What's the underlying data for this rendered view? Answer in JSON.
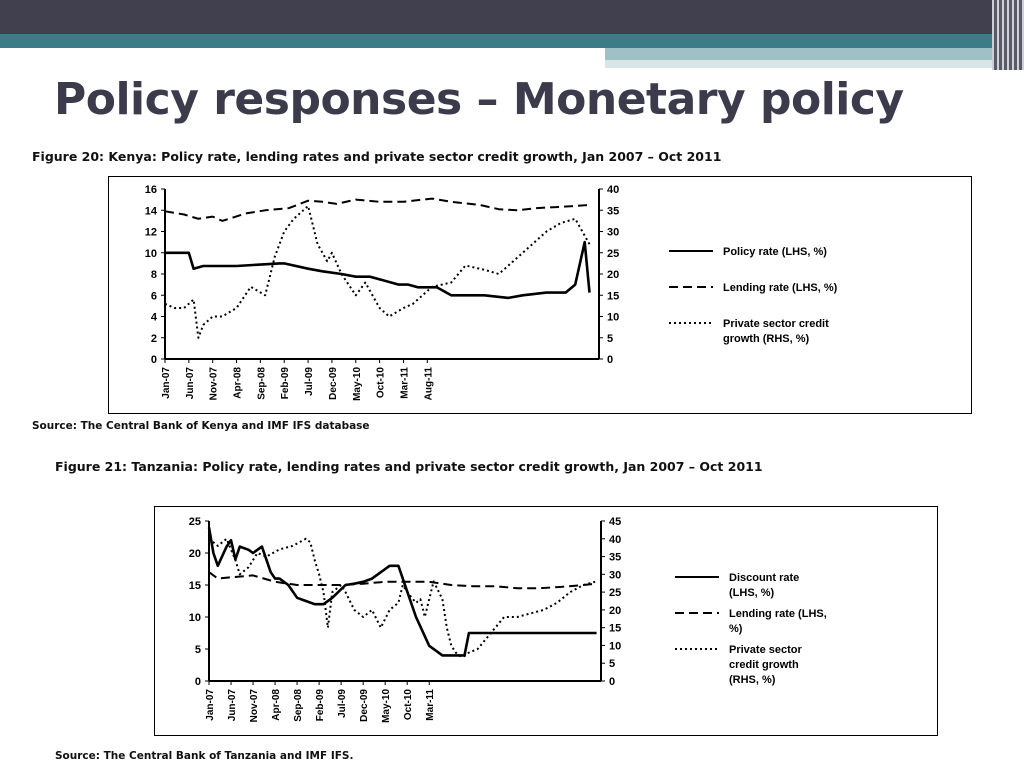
{
  "slide": {
    "title": "Policy responses – Monetary policy"
  },
  "chart_data": [
    {
      "type": "line",
      "caption": "Figure 20:  Kenya: Policy rate, lending rates and private sector credit growth, Jan 2007 – Oct 2011",
      "source": "Source: The Central Bank of Kenya and IMF IFS database",
      "x_tick_labels": [
        "Jan-07",
        "Jun-07",
        "Nov-07",
        "Apr-08",
        "Sep-08",
        "Feb-09",
        "Jul-09",
        "Dec-09",
        "May-10",
        "Oct-10",
        "Mar-11",
        "Aug-11"
      ],
      "y_left": {
        "ylim": [
          0,
          16
        ],
        "ticks": [
          "0",
          "2",
          "4",
          "6",
          "8",
          "10",
          "12",
          "14",
          "16"
        ]
      },
      "y_right": {
        "ylim": [
          0,
          40
        ],
        "ticks": [
          "0",
          "5",
          "10",
          "15",
          "20",
          "25",
          "30",
          "35",
          "40"
        ]
      },
      "legend": {
        "position": "right"
      },
      "series": [
        {
          "name": "Policy rate (LHS, %)",
          "axis": "left",
          "style": "solid",
          "x": [
            0,
            5,
            6,
            8,
            15,
            24,
            25,
            30,
            33,
            37,
            40,
            43,
            49,
            51,
            53,
            57,
            60,
            67,
            72,
            75,
            80,
            84,
            86,
            88,
            89
          ],
          "y": [
            10,
            10,
            8.5,
            8.75,
            8.75,
            9,
            9,
            8.5,
            8.25,
            8,
            7.75,
            7.75,
            7,
            7,
            6.75,
            6.75,
            6,
            6,
            5.75,
            6,
            6.25,
            6.25,
            7,
            11,
            6.25
          ]
        },
        {
          "name": "Lending rate (LHS, %)",
          "axis": "left",
          "style": "dashed",
          "x": [
            0,
            4,
            7,
            10,
            12,
            17,
            21,
            26,
            30,
            33,
            36,
            40,
            45,
            50,
            56,
            60,
            66,
            70,
            74,
            78,
            82,
            86,
            89
          ],
          "y": [
            13.9,
            13.6,
            13.2,
            13.4,
            13,
            13.7,
            14,
            14.2,
            14.9,
            14.8,
            14.6,
            15,
            14.8,
            14.8,
            15.1,
            14.8,
            14.5,
            14.1,
            14,
            14.2,
            14.3,
            14.4,
            14.5
          ]
        },
        {
          "name": "Private sector credit growth (RHS, %)",
          "axis": "right",
          "style": "dotted",
          "x": [
            0,
            2,
            4,
            6,
            7,
            8,
            10,
            12,
            15,
            18,
            21,
            23,
            25,
            27,
            30,
            32,
            34,
            35,
            37,
            40,
            42,
            45,
            47,
            50,
            52,
            56,
            60,
            63,
            67,
            70,
            73,
            76,
            80,
            83,
            86,
            89
          ],
          "y": [
            13,
            12,
            12,
            14,
            5,
            8,
            10,
            10,
            12,
            17,
            15,
            24,
            30,
            33,
            36,
            27,
            23,
            25,
            20,
            15,
            18,
            12,
            10,
            12,
            13,
            17,
            18,
            22,
            21,
            20,
            23,
            26,
            30,
            32,
            33,
            27
          ]
        }
      ]
    },
    {
      "type": "line",
      "caption": "Figure 21:  Tanzania: Policy rate, lending rates and private sector credit growth, Jan 2007 – Oct 2011",
      "source": "Source: The Central Bank of Tanzania and IMF IFS.",
      "x_tick_labels": [
        "Jan-07",
        "Jun-07",
        "Nov-07",
        "Apr-08",
        "Sep-08",
        "Feb-09",
        "Jul-09",
        "Dec-09",
        "May-10",
        "Oct-10",
        "Mar-11"
      ],
      "y_left": {
        "ylim": [
          0,
          25
        ],
        "ticks": [
          "0",
          "5",
          "10",
          "15",
          "20",
          "25"
        ]
      },
      "y_right": {
        "ylim": [
          0,
          45
        ],
        "ticks": [
          "0",
          "5",
          "10",
          "15",
          "20",
          "25",
          "30",
          "35",
          "40",
          "45"
        ]
      },
      "legend": {
        "position": "right"
      },
      "series": [
        {
          "name": "Discount rate (LHS, %)",
          "axis": "left",
          "style": "solid",
          "x": [
            0,
            1,
            2,
            4,
            5,
            6,
            7,
            9,
            10,
            12,
            14,
            15,
            16,
            18,
            20,
            22,
            24,
            26,
            28,
            31,
            33,
            35,
            37,
            39,
            41,
            43,
            45,
            47,
            49,
            50,
            52,
            53,
            55,
            57,
            58,
            59,
            60,
            61,
            62,
            63,
            65,
            70,
            75,
            80,
            85,
            88
          ],
          "y": [
            24,
            20,
            18,
            21,
            22,
            19,
            21,
            20.5,
            20,
            21,
            17,
            16,
            16,
            15,
            13,
            12.5,
            12,
            12,
            13,
            15,
            15.2,
            15.5,
            16,
            17,
            18,
            18,
            14,
            10,
            7,
            5.5,
            4.5,
            4,
            4,
            4,
            4,
            7.5,
            7.5,
            7.5,
            7.5,
            7.5,
            7.5,
            7.5,
            7.5,
            7.5,
            7.5,
            7.5
          ]
        },
        {
          "name": "Lending rate (LHS, %)",
          "axis": "left",
          "style": "dashed",
          "x": [
            0,
            2,
            5,
            10,
            15,
            20,
            25,
            30,
            35,
            40,
            45,
            50,
            55,
            60,
            65,
            70,
            75,
            80,
            85,
            88
          ],
          "y": [
            17,
            16,
            16.2,
            16.5,
            15.5,
            15,
            15,
            15,
            15.2,
            15.5,
            15.5,
            15.5,
            15,
            14.8,
            14.8,
            14.5,
            14.5,
            14.7,
            15,
            15.2
          ]
        },
        {
          "name": "Private sector credit growth (RHS, %)",
          "axis": "right",
          "style": "dotted",
          "x": [
            0,
            2,
            4,
            6,
            7,
            9,
            11,
            13,
            16,
            19,
            22,
            23,
            24,
            25,
            26,
            27,
            28,
            30,
            31,
            33,
            35,
            37,
            39,
            41,
            43,
            44,
            45,
            47,
            48,
            49,
            51,
            53,
            54,
            55,
            56,
            57,
            58,
            59,
            61,
            63,
            65,
            67,
            70,
            73,
            76,
            79,
            82,
            85,
            88
          ],
          "y": [
            40,
            38,
            40,
            34,
            30,
            32,
            36,
            35,
            37,
            38,
            40,
            39,
            34,
            30,
            25,
            15,
            25,
            27,
            25,
            20,
            18,
            20,
            15,
            20,
            22,
            27,
            25,
            22,
            23,
            18,
            28,
            23,
            15,
            10,
            8,
            7,
            7,
            8,
            9,
            12,
            15,
            18,
            18,
            19,
            20,
            22,
            25,
            27,
            28
          ]
        }
      ]
    }
  ]
}
